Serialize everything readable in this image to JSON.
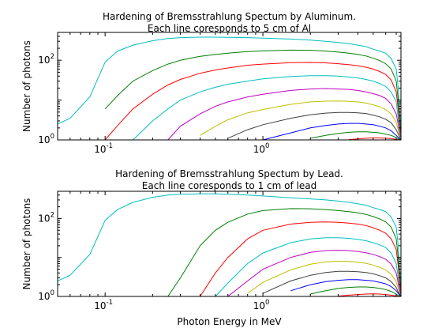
{
  "chart_data": [
    {
      "type": "line",
      "title": [
        "Hardening of Bremsstrahlung Spectum by Aluminum.",
        "Each line coresponds to 5 cm of Al"
      ],
      "xlabel": "",
      "ylabel": "Number of photons",
      "xscale": "log",
      "yscale": "log",
      "xlim": [
        0.05,
        7.5
      ],
      "ylim": [
        1,
        500
      ],
      "xticks": [
        {
          "base": "10",
          "exp": "-1",
          "value": 0.1
        },
        {
          "base": "10",
          "exp": "0",
          "value": 1
        }
      ],
      "yticks": [
        {
          "base": "10",
          "exp": "0",
          "value": 1
        },
        {
          "base": "10",
          "exp": "2",
          "value": 100
        }
      ],
      "grid": false,
      "legend": "none",
      "x": [
        0.05,
        0.06,
        0.08,
        0.1,
        0.12,
        0.15,
        0.2,
        0.25,
        0.3,
        0.4,
        0.5,
        0.6,
        0.8,
        1,
        1.5,
        2,
        2.5,
        3,
        3.5,
        4,
        4.5,
        5,
        5.5,
        6,
        6.5,
        7,
        7.2,
        7.4,
        7.5
      ],
      "series": [
        {
          "color": "#00bfbf",
          "values": [
            2.5,
            3.5,
            12,
            90,
            170,
            240,
            310,
            350,
            370,
            380,
            380,
            375,
            370,
            360,
            340,
            320,
            300,
            280,
            260,
            240,
            220,
            190,
            170,
            150,
            110,
            60,
            20,
            4,
            1
          ]
        },
        {
          "color": "#007f00",
          "values": [
            null,
            null,
            null,
            6,
            13,
            30,
            55,
            80,
            100,
            125,
            140,
            150,
            165,
            172,
            180,
            178,
            170,
            160,
            150,
            140,
            128,
            112,
            98,
            82,
            60,
            30,
            10,
            2.5,
            1
          ]
        },
        {
          "color": "#ff0000",
          "values": [
            null,
            null,
            null,
            1,
            2.3,
            6,
            14,
            24,
            33,
            47,
            57,
            64,
            75,
            80,
            87,
            88,
            86,
            82,
            78,
            73,
            67,
            60,
            52,
            44,
            32,
            16,
            6,
            1.8,
            1
          ]
        },
        {
          "color": "#00bfbf",
          "values": [
            null,
            null,
            null,
            null,
            null,
            1,
            3,
            6,
            10,
            16,
            21,
            25,
            30,
            34,
            39,
            41,
            41,
            40,
            38,
            36,
            33,
            30,
            26,
            22,
            16,
            9,
            3.5,
            1.5,
            1
          ]
        },
        {
          "color": "#bf00bf",
          "values": [
            null,
            null,
            null,
            null,
            null,
            null,
            null,
            1,
            2.2,
            4.5,
            7,
            9,
            12,
            14,
            17.5,
            19,
            19.5,
            19,
            18.5,
            17.5,
            16,
            14.5,
            13,
            11,
            8,
            4.5,
            2.5,
            1.3,
            1
          ]
        },
        {
          "color": "#bfbf00",
          "values": [
            null,
            null,
            null,
            null,
            null,
            null,
            null,
            null,
            null,
            1.3,
            2.2,
            3.2,
            4.8,
            5.8,
            7.8,
            9,
            9.4,
            9.5,
            9.3,
            9,
            8.4,
            7.6,
            6.8,
            5.8,
            4.5,
            2.8,
            1.8,
            1.2,
            1
          ]
        },
        {
          "color": "#404040",
          "values": [
            null,
            null,
            null,
            null,
            null,
            null,
            null,
            null,
            null,
            null,
            null,
            1.1,
            1.8,
            2.4,
            3.5,
            4.3,
            4.7,
            4.9,
            4.9,
            4.8,
            4.6,
            4.2,
            3.8,
            3.3,
            2.7,
            1.8,
            1.4,
            1.1,
            1
          ]
        },
        {
          "color": "#0000ff",
          "values": [
            null,
            null,
            null,
            null,
            null,
            null,
            null,
            null,
            null,
            null,
            null,
            null,
            null,
            1,
            1.5,
            2,
            2.3,
            2.5,
            2.6,
            2.6,
            2.5,
            2.4,
            2.2,
            2,
            1.7,
            1.3,
            1.15,
            1.05,
            1
          ]
        },
        {
          "color": "#007f00",
          "values": [
            null,
            null,
            null,
            null,
            null,
            null,
            null,
            null,
            null,
            null,
            null,
            null,
            null,
            null,
            null,
            1.1,
            1.3,
            1.45,
            1.55,
            1.6,
            1.6,
            1.55,
            1.5,
            1.4,
            1.3,
            1.15,
            1.05,
            1.02,
            1
          ]
        },
        {
          "color": "#ff0000",
          "values": [
            null,
            null,
            null,
            null,
            null,
            null,
            null,
            null,
            null,
            null,
            null,
            null,
            null,
            null,
            null,
            null,
            null,
            null,
            1.02,
            1.06,
            1.1,
            1.12,
            1.12,
            1.1,
            1.08,
            1.03,
            1.01,
            1,
            1
          ]
        }
      ]
    },
    {
      "type": "line",
      "title": [
        "Hardening of Bremsstrahlung Spectum by Lead.",
        "Each line coresponds to 1 cm of lead"
      ],
      "xlabel": "Photon Energy in MeV",
      "ylabel": "Number of photons",
      "xscale": "log",
      "yscale": "log",
      "xlim": [
        0.05,
        7.5
      ],
      "ylim": [
        1,
        500
      ],
      "xticks": [
        {
          "base": "10",
          "exp": "-1",
          "value": 0.1
        },
        {
          "base": "10",
          "exp": "0",
          "value": 1
        }
      ],
      "yticks": [
        {
          "base": "10",
          "exp": "0",
          "value": 1
        },
        {
          "base": "10",
          "exp": "2",
          "value": 100
        }
      ],
      "grid": false,
      "legend": "none",
      "x": [
        0.05,
        0.06,
        0.08,
        0.1,
        0.12,
        0.15,
        0.2,
        0.25,
        0.3,
        0.4,
        0.5,
        0.6,
        0.8,
        1,
        1.5,
        2,
        2.5,
        3,
        3.5,
        4,
        4.5,
        5,
        5.5,
        6,
        6.5,
        7,
        7.2,
        7.4,
        7.5
      ],
      "series": [
        {
          "color": "#00bfbf",
          "values": [
            2.5,
            3.5,
            12,
            90,
            170,
            260,
            350,
            400,
            420,
            430,
            430,
            420,
            400,
            380,
            340,
            320,
            300,
            280,
            260,
            240,
            220,
            190,
            170,
            150,
            110,
            60,
            20,
            4,
            1
          ]
        },
        {
          "color": "#007f00",
          "values": [
            null,
            null,
            null,
            null,
            null,
            null,
            null,
            1,
            3,
            20,
            50,
            80,
            130,
            160,
            180,
            178,
            170,
            160,
            150,
            140,
            128,
            112,
            98,
            82,
            60,
            30,
            10,
            2.5,
            1
          ]
        },
        {
          "color": "#ff0000",
          "values": [
            null,
            null,
            null,
            null,
            null,
            null,
            null,
            null,
            null,
            1,
            4,
            10,
            30,
            50,
            72,
            80,
            82,
            80,
            76,
            72,
            66,
            58,
            50,
            42,
            30,
            16,
            6,
            1.8,
            1
          ]
        },
        {
          "color": "#00bfbf",
          "values": [
            null,
            null,
            null,
            null,
            null,
            null,
            null,
            null,
            null,
            null,
            1,
            2.2,
            7,
            13,
            24,
            30,
            32,
            32,
            31,
            29,
            27,
            24,
            21,
            18,
            13,
            7,
            3,
            1.4,
            1
          ]
        },
        {
          "color": "#bf00bf",
          "values": [
            null,
            null,
            null,
            null,
            null,
            null,
            null,
            null,
            null,
            null,
            null,
            1,
            2.5,
            5,
            10,
            13.5,
            15,
            15.3,
            15,
            14.3,
            13.2,
            12,
            10.5,
            9,
            6.8,
            4,
            2.2,
            1.3,
            1
          ]
        },
        {
          "color": "#bfbf00",
          "values": [
            null,
            null,
            null,
            null,
            null,
            null,
            null,
            null,
            null,
            null,
            null,
            null,
            1.2,
            2.3,
            4.8,
            6.7,
            7.7,
            8,
            7.9,
            7.6,
            7.1,
            6.4,
            5.6,
            4.8,
            3.7,
            2.4,
            1.6,
            1.15,
            1
          ]
        },
        {
          "color": "#404040",
          "values": [
            null,
            null,
            null,
            null,
            null,
            null,
            null,
            null,
            null,
            null,
            null,
            null,
            null,
            1.2,
            2.5,
            3.5,
            4.1,
            4.4,
            4.4,
            4.3,
            4.1,
            3.8,
            3.4,
            3,
            2.4,
            1.7,
            1.3,
            1.1,
            1
          ]
        },
        {
          "color": "#0000ff",
          "values": [
            null,
            null,
            null,
            null,
            null,
            null,
            null,
            null,
            null,
            null,
            null,
            null,
            null,
            null,
            1.4,
            2,
            2.4,
            2.6,
            2.7,
            2.7,
            2.6,
            2.5,
            2.3,
            2.1,
            1.8,
            1.4,
            1.2,
            1.05,
            1
          ]
        },
        {
          "color": "#007f00",
          "values": [
            null,
            null,
            null,
            null,
            null,
            null,
            null,
            null,
            null,
            null,
            null,
            null,
            null,
            null,
            null,
            1.15,
            1.4,
            1.6,
            1.7,
            1.75,
            1.75,
            1.7,
            1.6,
            1.5,
            1.35,
            1.15,
            1.05,
            1.02,
            1
          ]
        },
        {
          "color": "#ff0000",
          "values": [
            null,
            null,
            null,
            null,
            null,
            null,
            null,
            null,
            null,
            null,
            null,
            null,
            null,
            null,
            null,
            null,
            null,
            1.02,
            1.08,
            1.12,
            1.15,
            1.16,
            1.15,
            1.12,
            1.08,
            1.03,
            1.01,
            1,
            1
          ]
        }
      ]
    }
  ]
}
